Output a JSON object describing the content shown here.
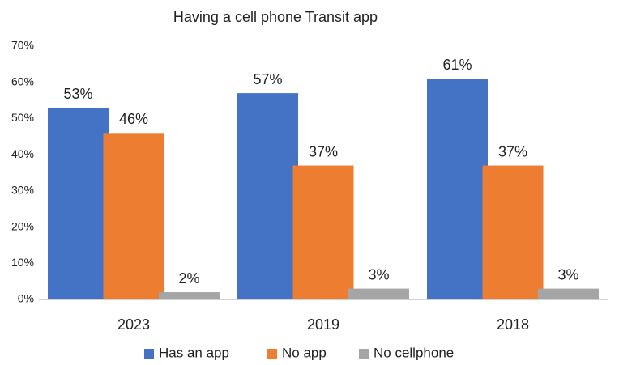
{
  "chart_data": {
    "type": "bar",
    "title": "Having a cell phone Transit app",
    "categories": [
      "2023",
      "2019",
      "2018"
    ],
    "series": [
      {
        "name": "Has an app",
        "color": "#4472c4",
        "values": [
          53,
          57,
          61
        ],
        "value_labels": [
          "53%",
          "57%",
          "61%"
        ]
      },
      {
        "name": "No app",
        "color": "#ed7d31",
        "values": [
          46,
          37,
          37
        ],
        "value_labels": [
          "46%",
          "37%",
          "37%"
        ]
      },
      {
        "name": "No cellphone",
        "color": "#a5a5a5",
        "values": [
          2,
          3,
          3
        ],
        "value_labels": [
          "2%",
          "3%",
          "3%"
        ]
      }
    ],
    "ylim": [
      0,
      70
    ],
    "yticks": [
      {
        "value": 0,
        "label": "0%"
      },
      {
        "value": 10,
        "label": "10%"
      },
      {
        "value": 20,
        "label": "20%"
      },
      {
        "value": 30,
        "label": "30%"
      },
      {
        "value": 40,
        "label": "40%"
      },
      {
        "value": 50,
        "label": "50%"
      },
      {
        "value": 60,
        "label": "60%"
      },
      {
        "value": 70,
        "label": "70%"
      }
    ],
    "grid": false,
    "legend": "bottom"
  }
}
